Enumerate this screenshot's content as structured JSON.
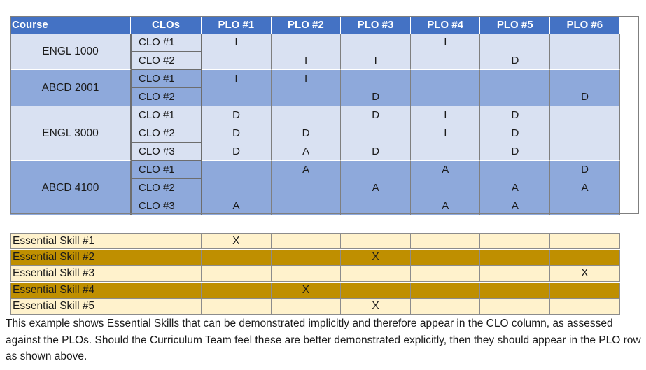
{
  "header": {
    "course": "Course",
    "clos": "CLOs",
    "plos": [
      "PLO #1",
      "PLO #2",
      "PLO #3",
      "PLO #4",
      "PLO #5",
      "PLO #6"
    ]
  },
  "courses": [
    {
      "name": "ENGL 1000",
      "shade": "light",
      "clos": [
        {
          "label": "CLO #1",
          "marks": [
            "I",
            "",
            "",
            "I",
            "",
            ""
          ]
        },
        {
          "label": "CLO #2",
          "marks": [
            "",
            "I",
            "I",
            "",
            "D",
            ""
          ]
        }
      ]
    },
    {
      "name": "ABCD 2001",
      "shade": "dark",
      "clos": [
        {
          "label": "CLO #1",
          "marks": [
            "I",
            "I",
            "",
            "",
            "",
            ""
          ]
        },
        {
          "label": "CLO #2",
          "marks": [
            "",
            "",
            "D",
            "",
            "",
            "D"
          ]
        }
      ]
    },
    {
      "name": "ENGL 3000",
      "shade": "light",
      "clos": [
        {
          "label": "CLO #1",
          "marks": [
            "D",
            "",
            "D",
            "I",
            "D",
            ""
          ]
        },
        {
          "label": "CLO #2",
          "marks": [
            "D",
            "D",
            "",
            "I",
            "D",
            ""
          ]
        },
        {
          "label": "CLO #3",
          "marks": [
            "D",
            "A",
            "D",
            "",
            "D",
            ""
          ]
        }
      ]
    },
    {
      "name": "ABCD 4100",
      "shade": "dark",
      "clos": [
        {
          "label": "CLO #1",
          "marks": [
            "",
            "A",
            "",
            "A",
            "",
            "D"
          ]
        },
        {
          "label": "CLO #2",
          "marks": [
            "",
            "",
            "A",
            "",
            "A",
            "A"
          ]
        },
        {
          "label": "CLO #3",
          "marks": [
            "A",
            "",
            "",
            "A",
            "A",
            ""
          ]
        }
      ]
    }
  ],
  "essential_skills": [
    {
      "label": "Essential Skill #1",
      "shade": "cream",
      "marks": [
        "X",
        "",
        "",
        "",
        "",
        ""
      ]
    },
    {
      "label": "Essential Skill #2",
      "shade": "gold",
      "marks": [
        "",
        "",
        "X",
        "",
        "",
        ""
      ]
    },
    {
      "label": "Essential Skill #3",
      "shade": "cream",
      "marks": [
        "",
        "",
        "",
        "",
        "",
        "X"
      ]
    },
    {
      "label": "Essential Skill #4",
      "shade": "gold",
      "marks": [
        "",
        "X",
        "",
        "",
        "",
        ""
      ]
    },
    {
      "label": "Essential Skill #5",
      "shade": "cream",
      "marks": [
        "",
        "",
        "X",
        "",
        "",
        ""
      ]
    }
  ],
  "note": "This example shows Essential Skills that can be demonstrated implicitly and therefore appear in the CLO column, as assessed against the PLOs. Should the Curriculum Team feel these are better demonstrated explicitly, then they should appear in the PLO row as shown above.",
  "colors": {
    "header": "#4472c4",
    "light_row": "#d9e1f2",
    "dark_row": "#8ea9db",
    "skill_light": "#fff2cc",
    "skill_dark": "#bf8f00"
  }
}
